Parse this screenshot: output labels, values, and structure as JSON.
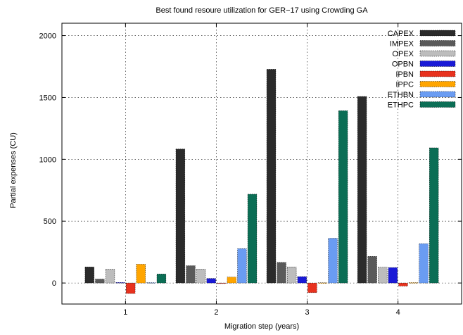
{
  "chart_data": {
    "type": "bar",
    "title": "Best found resoure utilization for GER−17 using Crowding GA",
    "xlabel": "Migration step (years)",
    "ylabel": "Partial expenses (CU)",
    "categories": [
      "1",
      "2",
      "3",
      "4"
    ],
    "xlim": [
      0.3,
      4.7
    ],
    "ylim": [
      -170,
      2100
    ],
    "yticks": [
      0,
      500,
      1000,
      1500,
      2000
    ],
    "grid": true,
    "legend_position": "top-right",
    "series": [
      {
        "name": "CAPEX",
        "color": "#2b2b2b",
        "values": [
          130,
          1083,
          1728,
          1508
        ]
      },
      {
        "name": "IMPEX",
        "color": "#5a5a5a",
        "values": [
          32,
          140,
          167,
          215
        ]
      },
      {
        "name": "OPEX",
        "color": "#bdbdbd",
        "values": [
          113,
          113,
          130,
          128
        ]
      },
      {
        "name": "OPBN",
        "color": "#1a1ad6",
        "values": [
          4,
          37,
          52,
          125
        ]
      },
      {
        "name": "IPBN",
        "color": "#e8321e",
        "values": [
          -85,
          -3,
          -78,
          -25
        ]
      },
      {
        "name": "IPPC",
        "color": "#ffa500",
        "values": [
          152,
          48,
          2,
          3
        ]
      },
      {
        "name": "ETHBN",
        "color": "#6a9cf2",
        "values": [
          3,
          278,
          362,
          318
        ]
      },
      {
        "name": "ETHPC",
        "color": "#0b6e55",
        "values": [
          73,
          718,
          1393,
          1093
        ]
      }
    ]
  }
}
